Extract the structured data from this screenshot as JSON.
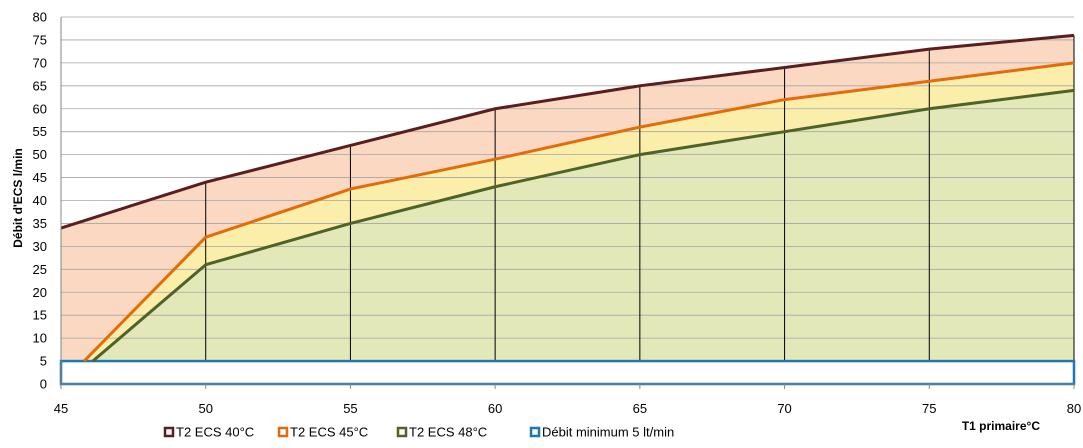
{
  "chart_data": {
    "type": "area",
    "xlabel": "T1 primaire°C",
    "ylabel": "Débit d'ECS  l/min",
    "xlim": [
      45,
      80
    ],
    "ylim": [
      0,
      80
    ],
    "x_ticks": [
      "45",
      "50",
      "55",
      "60",
      "65",
      "70",
      "75",
      "80"
    ],
    "y_ticks": [
      "0",
      "5",
      "10",
      "15",
      "20",
      "25",
      "30",
      "35",
      "40",
      "45",
      "50",
      "55",
      "60",
      "65",
      "70",
      "75",
      "80"
    ],
    "grid": "horizontal",
    "legend_position": "bottom",
    "series": [
      {
        "name": "T2 ECS  40°C",
        "line_color": "#5a1e1e",
        "fill_color": "#fad8c2",
        "points": [
          [
            45,
            34
          ],
          [
            50,
            44
          ],
          [
            55,
            52
          ],
          [
            60,
            60
          ],
          [
            65,
            65
          ],
          [
            70,
            69
          ],
          [
            75,
            73
          ],
          [
            80,
            76
          ]
        ]
      },
      {
        "name": "T2 ECS  45°C",
        "line_color": "#e36c0a",
        "fill_color": "#fbeeab",
        "points": [
          [
            45.8,
            5
          ],
          [
            50,
            32
          ],
          [
            55,
            42.5
          ],
          [
            60,
            49
          ],
          [
            65,
            56
          ],
          [
            70,
            62
          ],
          [
            75,
            66
          ],
          [
            80,
            70
          ]
        ]
      },
      {
        "name": "T2 ECS  48°C",
        "line_color": "#4f6228",
        "fill_color": "#e3e8b8",
        "points": [
          [
            46.1,
            5
          ],
          [
            50,
            26
          ],
          [
            55,
            35
          ],
          [
            60,
            43
          ],
          [
            65,
            50
          ],
          [
            70,
            55
          ],
          [
            75,
            60
          ],
          [
            80,
            64
          ]
        ]
      },
      {
        "name": "Débit minimum 5 lt/min",
        "line_color": "#1f77b4",
        "fill_color": "#ffffff",
        "points": [
          [
            45,
            5
          ],
          [
            80,
            5
          ]
        ]
      }
    ]
  }
}
